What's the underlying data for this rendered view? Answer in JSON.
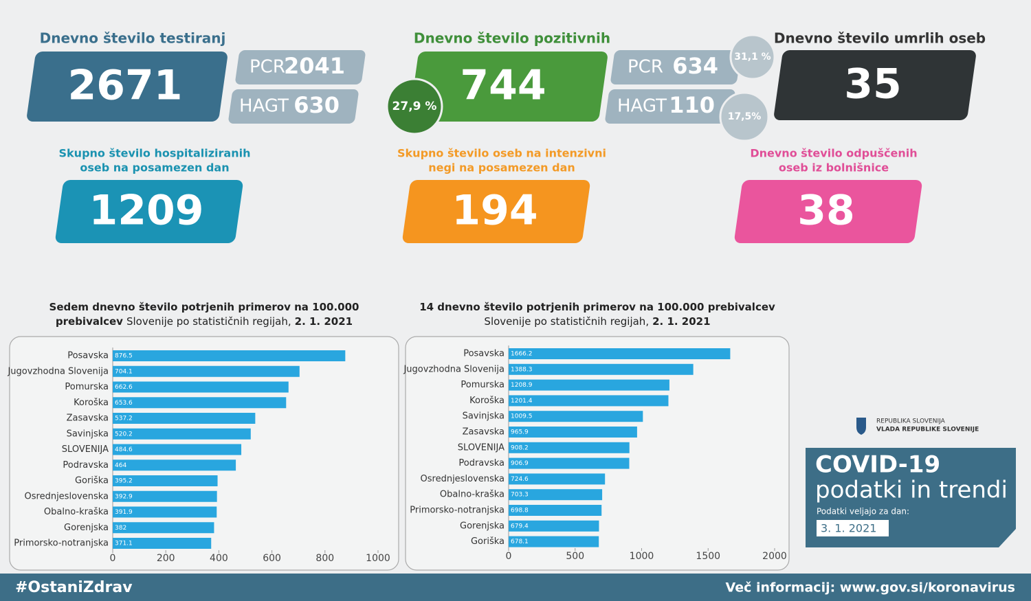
{
  "stats": {
    "tests": {
      "title": "Dnevno število testiranj",
      "value": 2671,
      "pcr_label": "PCR",
      "pcr_value": 2041,
      "hagt_label": "HAGT",
      "hagt_value": 630
    },
    "positive": {
      "title": "Dnevno število pozitivnih",
      "value": 744,
      "share": "27,9 %",
      "pcr_label": "PCR",
      "pcr_value": 634,
      "pcr_share": "31,1 %",
      "hagt_label": "HAGT",
      "hagt_value": 110,
      "hagt_share": "17,5%"
    },
    "deaths": {
      "title": "Dnevno število umrlih oseb",
      "value": 35
    },
    "hospitalized": {
      "title": [
        "Skupno število hospitaliziranih",
        "oseb na posamezen dan"
      ],
      "value": 1209
    },
    "icu": {
      "title": [
        "Skupno število oseb na intenzivni",
        "negi na posamezen dan"
      ],
      "value": 194
    },
    "discharged": {
      "title": [
        "Dnevno število odpuščenih",
        "oseb iz bolnišnice"
      ],
      "value": 38
    }
  },
  "chart_data": [
    {
      "type": "bar",
      "orientation": "horizontal",
      "title": [
        [
          {
            "text": "Sedem dnevno število potrjenih primerov na 100.000",
            "bold": true
          }
        ],
        [
          {
            "text": "prebivalcev",
            "bold": true
          },
          {
            "text": "Slovenije po statističnih regijah,",
            "bold": false
          },
          {
            "text": "2. 1. 2021",
            "bold": true
          }
        ]
      ],
      "categories": [
        "Posavska",
        "Jugovzhodna Slovenija",
        "Pomurska",
        "Koroška",
        "Zasavska",
        "Savinjska",
        "SLOVENIJA",
        "Podravska",
        "Goriška",
        "Osrednjeslovenska",
        "Obalno-kraška",
        "Gorenjska",
        "Primorsko-notranjska"
      ],
      "values": [
        876.5,
        704.1,
        662.6,
        653.6,
        537.2,
        520.2,
        484.6,
        464,
        395.2,
        392.9,
        391.9,
        382,
        371.1
      ],
      "color": "#29a6df",
      "xlim": [
        0,
        1000
      ],
      "xticks": [
        0,
        200,
        400,
        600,
        800,
        1000
      ]
    },
    {
      "type": "bar",
      "orientation": "horizontal",
      "title": [
        [
          {
            "text": "14 dnevno število potrjenih primerov na 100.000 prebivalcev",
            "bold": true
          }
        ],
        [
          {
            "text": "Slovenije po statističnih regijah,",
            "bold": false
          },
          {
            "text": "2. 1. 2021",
            "bold": true
          }
        ]
      ],
      "categories": [
        "Posavska",
        "Jugovzhodna Slovenija",
        "Pomurska",
        "Koroška",
        "Savinjska",
        "Zasavska",
        "SLOVENIJA",
        "Podravska",
        "Osrednjeslovenska",
        "Obalno-kraška",
        "Primorsko-notranjska",
        "Gorenjska",
        "Goriška"
      ],
      "values": [
        1666.2,
        1388.3,
        1208.9,
        1201.4,
        1009.5,
        965.9,
        908.2,
        906.9,
        724.6,
        703.3,
        698.8,
        679.4,
        678.1
      ],
      "color": "#29a6df",
      "xlim": [
        0,
        2000
      ],
      "xticks": [
        0,
        500,
        1000,
        1500,
        2000
      ]
    }
  ],
  "branding": {
    "gov_line1": "REPUBLIKA SLOVENIJA",
    "gov_line2": "VLADA REPUBLIKE SLOVENIJE",
    "heading": "COVID-19",
    "subheading": "podatki in trendi",
    "date_label": "Podatki veljajo za dan:",
    "date": "3. 1. 2021"
  },
  "footer": {
    "hashtag": "#OstaniZdrav",
    "info": "Več informacij: www.gov.si/koronavirus"
  }
}
